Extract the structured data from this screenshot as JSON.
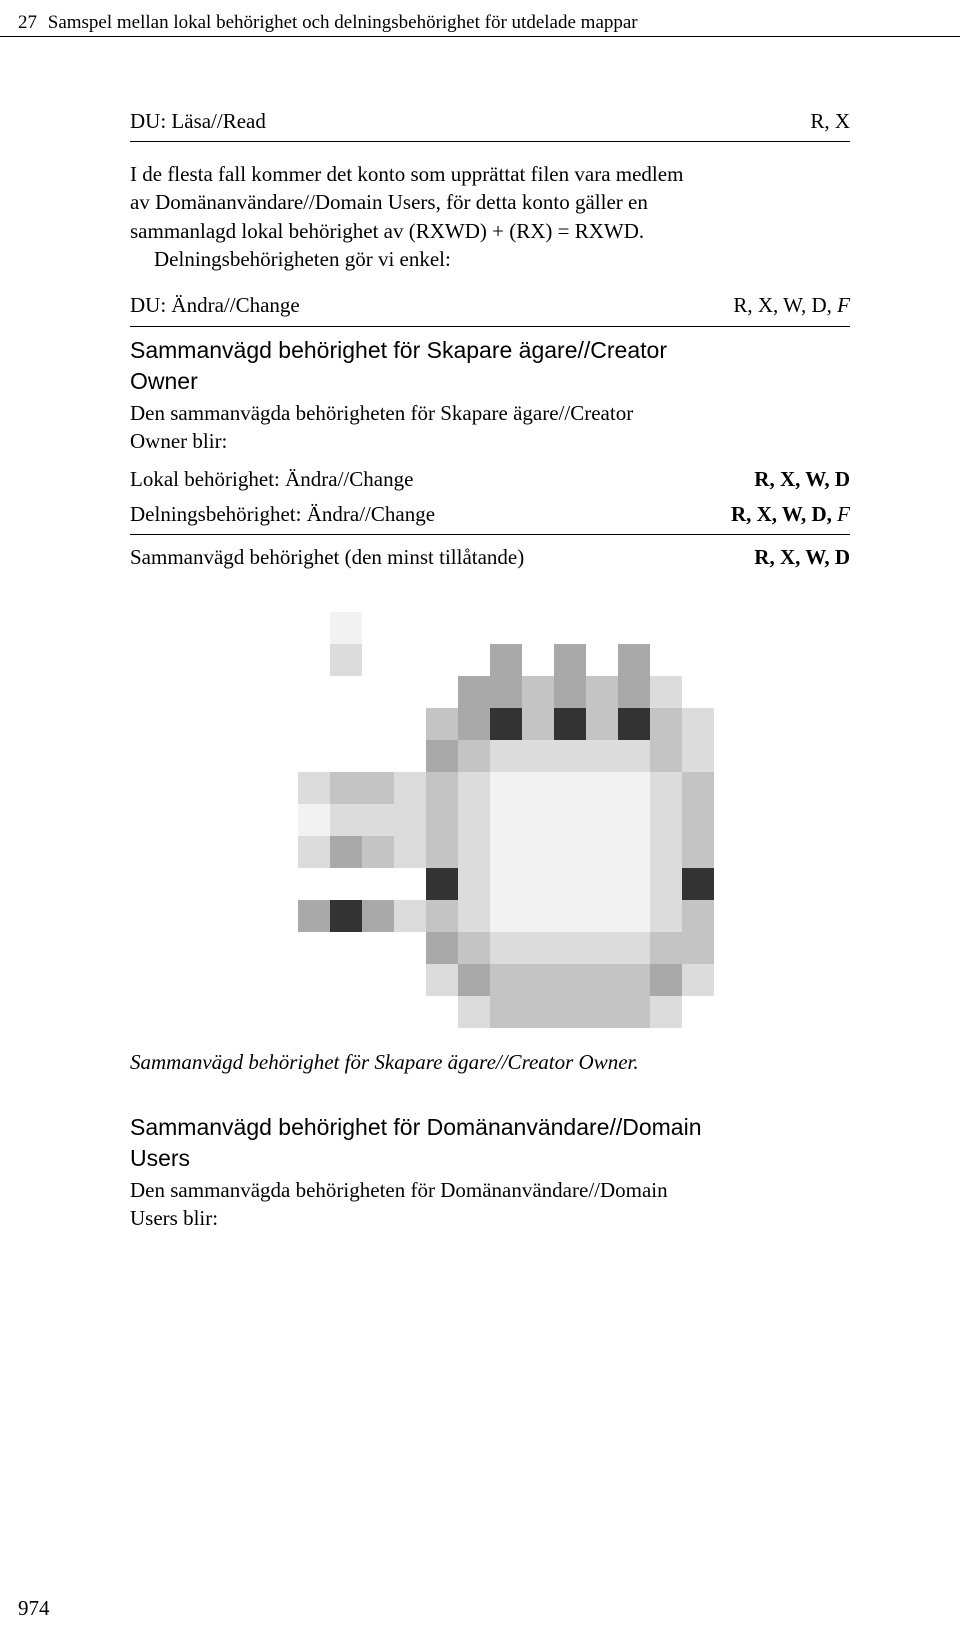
{
  "header": {
    "chapter_num": "27",
    "chapter_title": "Samspel mellan lokal behörighet och delningsbehörighet för utdelade mappar"
  },
  "row_du_read": {
    "left": "DU: Läsa//Read",
    "right": "R, X"
  },
  "para1": {
    "line1": "I de flesta fall kommer det konto som upprättat filen vara medlem",
    "line2": "av Domänanvändare//Domain Users, för detta konto gäller en",
    "line3": "sammanlagd lokal behörighet av (RXWD) + (RX) = RXWD.",
    "line4": "Delningsbehörigheten gör vi enkel:"
  },
  "row_du_change": {
    "left": "DU: Ändra//Change",
    "right_plain": "R, X, W, D,",
    "right_it": " F"
  },
  "section_creator": {
    "heading_l1": "Sammanvägd behörighet för Skapare ägare//Creator",
    "heading_l2": "Owner",
    "sub_l1": "Den sammanvägda behörigheten för Skapare ägare//Creator",
    "sub_l2": "Owner blir:"
  },
  "row_local": {
    "left": "Lokal behörighet: Ändra//Change",
    "right_bold": "R, X, W, D"
  },
  "row_share": {
    "left": "Delningsbehörighet: Ändra//Change",
    "right_bold": "R, X, W, D,",
    "right_it": " F"
  },
  "row_combined": {
    "left": "Sammanvägd behörighet (den minst tillåtande)",
    "right_bold": "R, X, W, D"
  },
  "caption": "Sammanvägd behörighet för Skapare ägare//Creator Owner.",
  "section_domain": {
    "heading_l1": "Sammanvägd behörighet för Domänanvändare//Domain",
    "heading_l2": "Users",
    "sub_l1": "Den sammanvägda behörigheten för Domänanvändare//Domain",
    "sub_l2": "Users blir:"
  },
  "page_number": "974",
  "figure": {
    "palette": {
      "0": "#ffffff",
      "1": "#f2f2f2",
      "2": "#dcdcdc",
      "3": "#c4c4c4",
      "4": "#a9a9a9",
      "5": "#7f7f7f",
      "6": "#333333"
    },
    "rows": [
      [
        0,
        0,
        1,
        0,
        0,
        0,
        0,
        0,
        0,
        0,
        0,
        0,
        0,
        0
      ],
      [
        0,
        0,
        2,
        0,
        0,
        0,
        0,
        4,
        0,
        4,
        0,
        4,
        0,
        0
      ],
      [
        0,
        0,
        0,
        0,
        0,
        0,
        4,
        4,
        3,
        4,
        3,
        4,
        2,
        0
      ],
      [
        0,
        0,
        0,
        0,
        0,
        3,
        4,
        6,
        3,
        6,
        3,
        6,
        3,
        2
      ],
      [
        0,
        0,
        0,
        0,
        0,
        4,
        3,
        2,
        2,
        2,
        2,
        2,
        3,
        2
      ],
      [
        0,
        2,
        3,
        3,
        2,
        3,
        2,
        1,
        1,
        1,
        1,
        1,
        2,
        3
      ],
      [
        0,
        1,
        2,
        2,
        2,
        3,
        2,
        1,
        1,
        1,
        1,
        1,
        2,
        3
      ],
      [
        0,
        2,
        4,
        3,
        2,
        3,
        2,
        1,
        1,
        1,
        1,
        1,
        2,
        3
      ],
      [
        0,
        0,
        0,
        0,
        0,
        6,
        2,
        1,
        1,
        1,
        1,
        1,
        2,
        6
      ],
      [
        0,
        4,
        6,
        4,
        2,
        3,
        2,
        1,
        1,
        1,
        1,
        1,
        2,
        3
      ],
      [
        0,
        0,
        0,
        0,
        0,
        4,
        3,
        2,
        2,
        2,
        2,
        2,
        3,
        3
      ],
      [
        0,
        0,
        0,
        0,
        0,
        2,
        4,
        3,
        3,
        3,
        3,
        3,
        4,
        2
      ],
      [
        0,
        0,
        0,
        0,
        0,
        0,
        2,
        3,
        3,
        3,
        3,
        3,
        2,
        0
      ]
    ]
  }
}
